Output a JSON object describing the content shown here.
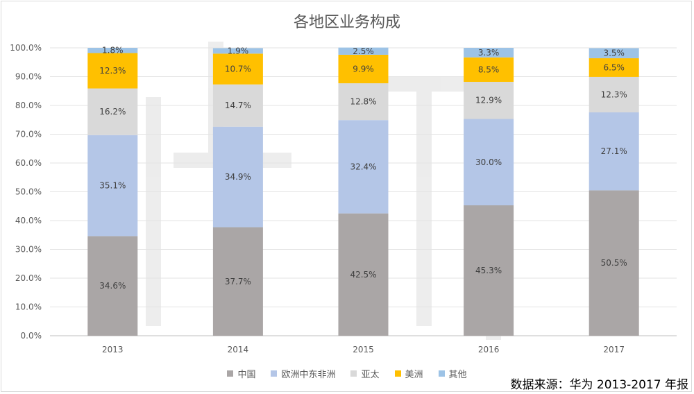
{
  "chart_data": {
    "type": "bar",
    "stacked": true,
    "title": "各地区业务构成",
    "categories": [
      "2013",
      "2014",
      "2015",
      "2016",
      "2017"
    ],
    "series": [
      {
        "name": "中国",
        "color": "#aaa6a6",
        "values": [
          34.6,
          37.7,
          42.5,
          45.3,
          50.5
        ]
      },
      {
        "name": "欧洲中东非洲",
        "color": "#b4c6e7",
        "values": [
          35.1,
          34.9,
          32.4,
          30.0,
          27.1
        ]
      },
      {
        "name": "亚太",
        "color": "#d9d9d9",
        "values": [
          16.2,
          14.7,
          12.8,
          12.9,
          12.3
        ]
      },
      {
        "name": "美洲",
        "color": "#ffc000",
        "values": [
          12.3,
          10.7,
          9.9,
          8.5,
          6.5
        ]
      },
      {
        "name": "其他",
        "color": "#9dc3e6",
        "values": [
          1.8,
          1.9,
          2.5,
          3.3,
          3.5
        ]
      }
    ],
    "ylim": [
      0,
      100
    ],
    "yticks": [
      "0.0%",
      "10.0%",
      "20.0%",
      "30.0%",
      "40.0%",
      "50.0%",
      "60.0%",
      "70.0%",
      "80.0%",
      "90.0%",
      "100.0%"
    ],
    "grid": true,
    "legend": "bottom"
  },
  "source_note": "数据来源：华为 2013-2017 年报"
}
